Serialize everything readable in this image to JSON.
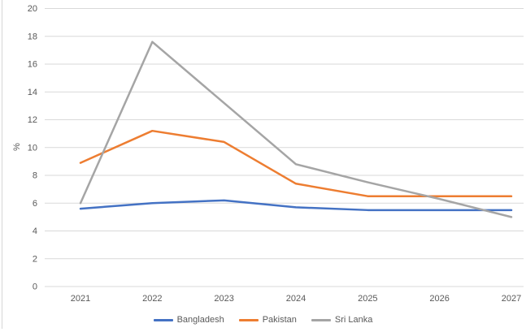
{
  "chart": {
    "background": "#ffffff",
    "grid_color": "#d9d9d9",
    "axis_text_color": "#595959",
    "left_border_color": "#d6d6d6"
  },
  "chart_data": {
    "type": "line",
    "title": "",
    "xlabel": "",
    "ylabel": "%",
    "categories": [
      "2021",
      "2022",
      "2023",
      "2024",
      "2025",
      "2026",
      "2027"
    ],
    "series": [
      {
        "name": "Bangladesh",
        "color": "#4472C4",
        "values": [
          5.6,
          6.0,
          6.2,
          5.7,
          5.5,
          5.5,
          5.5
        ]
      },
      {
        "name": "Pakistan",
        "color": "#ED7D31",
        "values": [
          8.9,
          11.2,
          10.4,
          7.4,
          6.5,
          6.5,
          6.5
        ]
      },
      {
        "name": "Sri Lanka",
        "color": "#A5A5A5",
        "values": [
          6.0,
          17.6,
          13.2,
          8.8,
          7.5,
          6.3,
          5.0
        ]
      }
    ],
    "ylim": [
      0,
      20
    ],
    "ytick_step": 2,
    "yticks": [
      "0",
      "2",
      "4",
      "6",
      "8",
      "10",
      "12",
      "14",
      "16",
      "18",
      "20"
    ],
    "grid": "horizontal",
    "legend_position": "bottom"
  }
}
